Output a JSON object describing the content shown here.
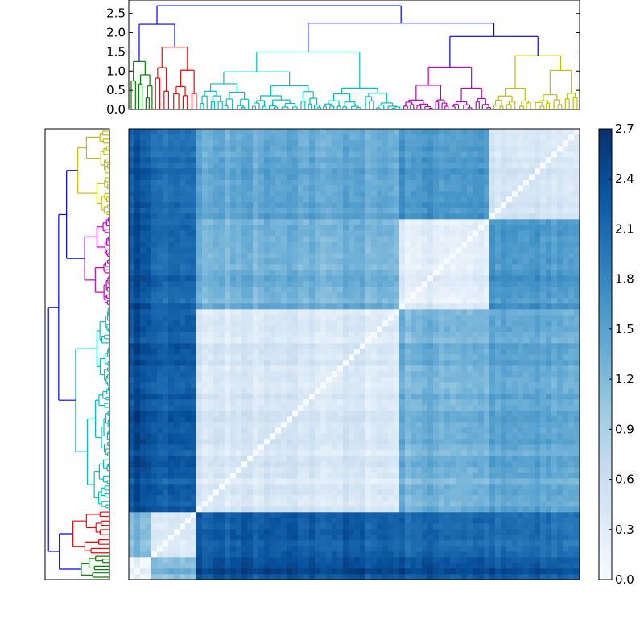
{
  "chart_data": {
    "type": "heatmap",
    "title": "",
    "xlabel": "",
    "ylabel": "",
    "colormap": "Blues",
    "colorbar": {
      "range": [
        0.0,
        2.7
      ],
      "ticks": [
        "0.0",
        "0.3",
        "0.6",
        "0.9",
        "1.2",
        "1.5",
        "1.8",
        "2.1",
        "2.4",
        "2.7"
      ]
    },
    "dendrogram_axis": {
      "range": [
        0.0,
        2.85
      ],
      "ticks": [
        "0.0",
        "0.5",
        "1.0",
        "1.5",
        "2.0",
        "2.5"
      ]
    },
    "clusters": [
      {
        "color": "#008000",
        "fraction": 0.055,
        "height": 1.25
      },
      {
        "color": "#ff0000",
        "fraction": 0.1,
        "height": 1.62
      },
      {
        "color": "#00bfbf",
        "fraction": 0.45,
        "height": 1.5
      },
      {
        "color": "#bf00bf",
        "fraction": 0.2,
        "height": 1.1
      },
      {
        "color": "#bfbf00",
        "fraction": 0.195,
        "height": 1.4
      }
    ],
    "merges": [
      {
        "left": 0,
        "right": 1,
        "height": 2.22,
        "color": "#0000ff"
      },
      {
        "left": 3,
        "right": 4,
        "height": 1.9,
        "color": "#0000ff"
      },
      {
        "left": 2,
        "right": "m2",
        "height": 2.25,
        "color": "#0000ff"
      },
      {
        "left": "m1",
        "right": "m3",
        "height": 2.7,
        "color": "#0000ff"
      }
    ],
    "cluster_distance_matrix": [
      [
        0.25,
        1.2,
        2.4,
        2.4,
        2.3
      ],
      [
        1.2,
        0.3,
        2.2,
        2.1,
        2.0
      ],
      [
        2.4,
        2.2,
        0.4,
        1.3,
        1.4
      ],
      [
        2.4,
        2.1,
        1.3,
        0.3,
        1.6
      ],
      [
        2.3,
        2.0,
        1.4,
        1.6,
        0.4
      ]
    ],
    "colors": {
      "low": "#f7fbff",
      "high": "#08306b",
      "link_above_threshold": "#0000ff"
    }
  }
}
